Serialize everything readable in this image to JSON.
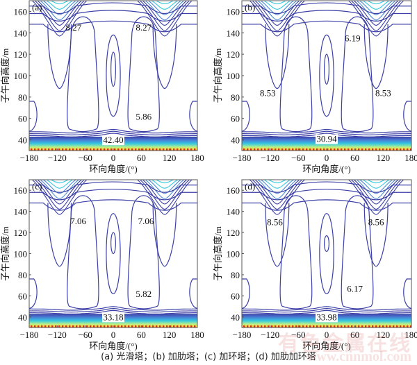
{
  "caption": "(a) 光滑塔；(b) 加肋塔；(c) 加环塔；(d) 加肋加环塔",
  "watermark": {
    "cn": "有色金属在线",
    "url": "www.cnnmol.com"
  },
  "colors": {
    "contour": "#3b3fa6",
    "cyan": "#33c8e0",
    "yellow": "#f5e23a",
    "red": "#d2281e"
  },
  "chart_data": [
    {
      "type": "contour",
      "panel": "(a)",
      "title": "光滑塔",
      "xlabel": "环向角度/(°)",
      "ylabel": "子午向高度/m",
      "xlim": [
        -180,
        180
      ],
      "ylim": [
        30,
        170
      ],
      "xticks": [
        -180,
        -120,
        -60,
        0,
        60,
        120,
        180
      ],
      "yticks": [
        40,
        60,
        80,
        100,
        120,
        140,
        160
      ],
      "labels": [
        {
          "text": "8.27",
          "x": -85,
          "y": 142
        },
        {
          "text": "8.27",
          "x": 65,
          "y": 142
        },
        {
          "text": "5.86",
          "x": 65,
          "y": 59
        },
        {
          "text": "42.40",
          "x": 0,
          "y": 37
        }
      ],
      "features": {
        "top_troughs": [
          -115,
          110
        ],
        "center_lobe": [
          90,
          122
        ],
        "variant": "a"
      }
    },
    {
      "type": "contour",
      "panel": "(b)",
      "title": "加肋塔",
      "xlabel": "环向角度/(°)",
      "ylabel": "子午向高度/m",
      "xlim": [
        -180,
        180
      ],
      "ylim": [
        30,
        170
      ],
      "xticks": [
        -180,
        -120,
        -60,
        0,
        60,
        120,
        180
      ],
      "yticks": [
        40,
        60,
        80,
        100,
        120,
        140,
        160
      ],
      "labels": [
        {
          "text": "6.19",
          "x": 55,
          "y": 132
        },
        {
          "text": "8.53",
          "x": -125,
          "y": 81
        },
        {
          "text": "8.53",
          "x": 120,
          "y": 81
        },
        {
          "text": "30.94",
          "x": 0,
          "y": 38
        }
      ],
      "features": {
        "top_troughs": [
          -105,
          105
        ],
        "center_lobe": [
          92,
          120
        ],
        "variant": "b"
      }
    },
    {
      "type": "contour",
      "panel": "(c)",
      "title": "加环塔",
      "xlabel": "环向角度/(°)",
      "ylabel": "子午向高度/m",
      "xlim": [
        -180,
        180
      ],
      "ylim": [
        30,
        170
      ],
      "xticks": [
        -180,
        -120,
        -60,
        0,
        60,
        120,
        180
      ],
      "yticks": [
        40,
        60,
        80,
        100,
        120,
        140,
        160
      ],
      "labels": [
        {
          "text": "7.06",
          "x": -75,
          "y": 128
        },
        {
          "text": "7.06",
          "x": 70,
          "y": 128
        },
        {
          "text": "5.82",
          "x": 65,
          "y": 59
        },
        {
          "text": "33.18",
          "x": 0,
          "y": 37
        }
      ],
      "features": {
        "top_troughs": [
          -115,
          110
        ],
        "center_lobe": [
          100,
          120
        ],
        "variant": "c"
      }
    },
    {
      "type": "contour",
      "panel": "(d)",
      "title": "加肋加环塔",
      "xlabel": "环向角度/(°)",
      "ylabel": "子午向高度/m",
      "xlim": [
        -180,
        180
      ],
      "ylim": [
        30,
        170
      ],
      "xticks": [
        -180,
        -120,
        -60,
        0,
        60,
        120,
        180
      ],
      "yticks": [
        40,
        60,
        80,
        100,
        120,
        140,
        160
      ],
      "labels": [
        {
          "text": "8.56",
          "x": -110,
          "y": 127
        },
        {
          "text": "8.56",
          "x": 105,
          "y": 127
        },
        {
          "text": "6.17",
          "x": 60,
          "y": 64
        },
        {
          "text": "33.98",
          "x": 0,
          "y": 37
        }
      ],
      "features": {
        "top_troughs": [
          -105,
          105
        ],
        "center_lobe": [
          102,
          117
        ],
        "variant": "d"
      }
    }
  ]
}
